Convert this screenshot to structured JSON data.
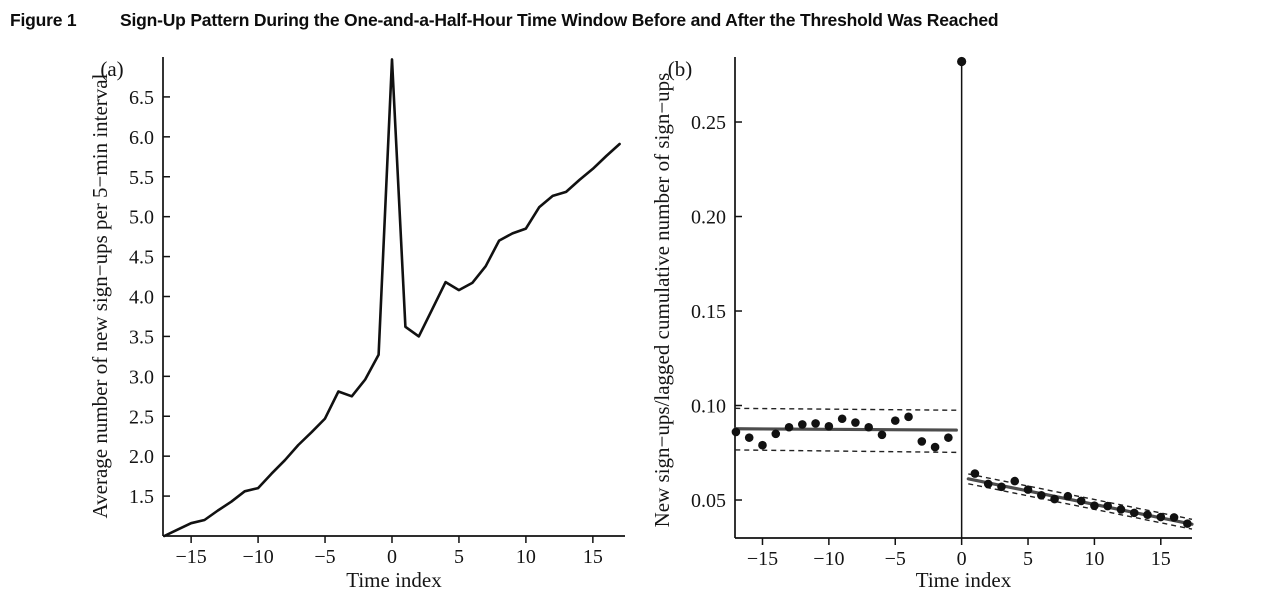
{
  "figure": {
    "label": "Figure 1",
    "title": "Sign-Up Pattern During the One-and-a-Half-Hour Time Window Before and After the Threshold Was Reached"
  },
  "colors": {
    "text": "#141414",
    "curve": "#111111",
    "axis": "#111111",
    "point": "#111111",
    "fit_line": "#4d4d4d",
    "ci_dashed": "#222222",
    "background": "#ffffff"
  },
  "chart_data": [
    {
      "id": "a",
      "type": "line",
      "panel_label": "(a)",
      "xlabel": "Time index",
      "ylabel": "Average number of new sign-ups per 5-min interval",
      "x": [
        -17,
        -16,
        -15,
        -14,
        -13,
        -12,
        -11,
        -10,
        -9,
        -8,
        -7,
        -6,
        -5,
        -4,
        -3,
        -2,
        -1,
        0,
        1,
        2,
        3,
        4,
        5,
        6,
        7,
        8,
        9,
        10,
        11,
        12,
        13,
        14,
        15,
        16,
        17
      ],
      "values": [
        1.0,
        1.08,
        1.16,
        1.2,
        1.32,
        1.43,
        1.56,
        1.6,
        1.78,
        1.95,
        2.14,
        2.3,
        2.47,
        2.81,
        2.75,
        2.96,
        3.27,
        6.97,
        3.62,
        3.5,
        3.84,
        4.18,
        4.08,
        4.17,
        4.38,
        4.7,
        4.79,
        4.85,
        5.12,
        5.26,
        5.31,
        5.46,
        5.6,
        5.76,
        5.91
      ],
      "xlim": [
        -17.1,
        17.4
      ],
      "ylim": [
        1.0,
        7.0
      ],
      "xticks": [
        -15,
        -10,
        -5,
        0,
        5,
        10,
        15
      ],
      "yticks": [
        1.5,
        2.0,
        2.5,
        3.0,
        3.5,
        4.0,
        4.5,
        5.0,
        5.5,
        6.0,
        6.5
      ],
      "grid": false,
      "legend": "none"
    },
    {
      "id": "b",
      "type": "scatter",
      "panel_label": "(b)",
      "xlabel": "Time index",
      "ylabel": "New sign-ups/lagged cumulative number of sign-ups",
      "xlim": [
        -17.07,
        17.35
      ],
      "ylim": [
        0.0299,
        0.2844
      ],
      "xticks": [
        -15,
        -10,
        -5,
        0,
        5,
        10,
        15
      ],
      "yticks": [
        0.05,
        0.1,
        0.15,
        0.2,
        0.25
      ],
      "grid": false,
      "legend": "none",
      "threshold_spike": {
        "x": 0,
        "y": 0.282,
        "vline_from_axis": true
      },
      "pre_period": {
        "x": [
          -17,
          -16,
          -15,
          -14,
          -13,
          -12,
          -11,
          -10,
          -9,
          -8,
          -7,
          -6,
          -5,
          -4,
          -3,
          -2,
          -1
        ],
        "y": [
          0.086,
          0.083,
          0.079,
          0.085,
          0.0885,
          0.09,
          0.0905,
          0.089,
          0.093,
          0.091,
          0.0885,
          0.0845,
          0.092,
          0.094,
          0.081,
          0.078,
          0.083
        ],
        "fit": {
          "x1": -17.05,
          "y1": 0.0877,
          "x2": -0.4,
          "y2": 0.087
        },
        "ci_upper": {
          "x1": -17.05,
          "y1": 0.0985,
          "x2": -0.4,
          "y2": 0.0975
        },
        "ci_lower": {
          "x1": -17.05,
          "y1": 0.0765,
          "x2": -0.4,
          "y2": 0.0752
        }
      },
      "post_period": {
        "x": [
          1,
          2,
          3,
          4,
          5,
          6,
          7,
          8,
          9,
          10,
          11,
          12,
          13,
          14,
          15,
          16,
          17
        ],
        "y": [
          0.064,
          0.0585,
          0.057,
          0.06,
          0.0555,
          0.0525,
          0.0505,
          0.052,
          0.0495,
          0.047,
          0.0468,
          0.045,
          0.0432,
          0.0422,
          0.041,
          0.0408,
          0.0375
        ],
        "fit": {
          "x1": 0.5,
          "y1": 0.0612,
          "x2": 17.35,
          "y2": 0.0372
        },
        "ci_offset": 0.0026
      }
    }
  ]
}
